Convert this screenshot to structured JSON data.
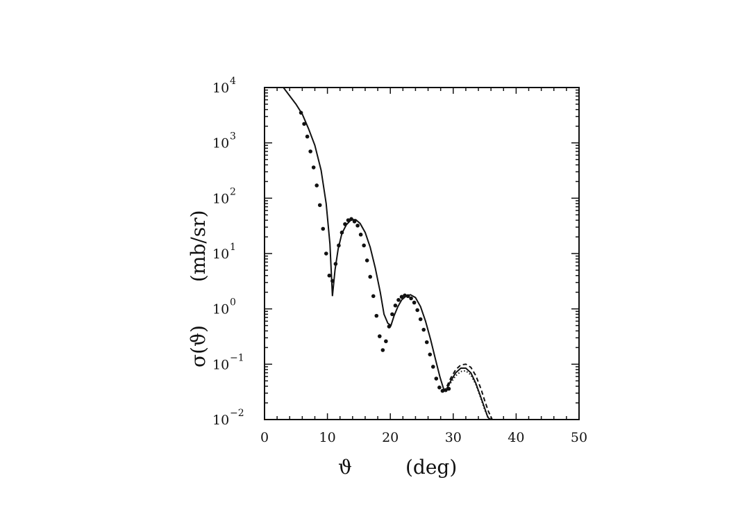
{
  "chart_data": {
    "type": "scatter",
    "title": "",
    "xlabel_symbol": "ϑ",
    "xlabel_unit": "(deg)",
    "ylabel_symbol": "σ(ϑ)",
    "ylabel_unit": "(mb/sr)",
    "x_scale": "linear",
    "y_scale": "log",
    "xlim": [
      0,
      50
    ],
    "ylim": [
      0.01,
      10000
    ],
    "x_ticks": [
      0,
      10,
      20,
      30,
      40,
      50
    ],
    "y_ticks": [
      {
        "value": 0.01,
        "base": "10",
        "exp": "−2"
      },
      {
        "value": 0.1,
        "base": "10",
        "exp": "−1"
      },
      {
        "value": 1,
        "base": "10",
        "exp": "0"
      },
      {
        "value": 10,
        "base": "10",
        "exp": "1"
      },
      {
        "value": 100,
        "base": "10",
        "exp": "2"
      },
      {
        "value": 1000,
        "base": "10",
        "exp": "3"
      },
      {
        "value": 10000,
        "base": "10",
        "exp": "4"
      }
    ],
    "grid": false,
    "legend": "none",
    "series": [
      {
        "style": "points",
        "x": [
          5.8,
          6.3,
          6.8,
          7.3,
          7.8,
          8.3,
          8.8,
          9.3,
          9.8,
          10.3,
          10.8,
          11.3,
          11.8,
          12.3,
          12.8,
          13.3,
          13.8,
          14.3,
          14.8,
          15.3,
          15.8,
          16.3,
          16.8,
          17.3,
          17.8,
          18.3,
          18.8,
          19.3,
          19.8,
          20.3,
          20.8,
          21.3,
          21.8,
          22.3,
          22.8,
          23.3,
          23.8,
          24.3,
          24.8,
          25.3,
          25.8,
          26.3,
          26.8,
          27.3,
          27.8,
          28.3,
          28.8,
          29.3
        ],
        "y": [
          3500,
          2200,
          1300,
          700,
          360,
          170,
          75,
          28,
          10,
          4.0,
          3.2,
          6.5,
          14,
          24,
          34,
          40,
          42,
          38,
          32,
          22,
          14,
          7.5,
          3.8,
          1.7,
          0.75,
          0.32,
          0.18,
          0.26,
          0.48,
          0.8,
          1.15,
          1.45,
          1.65,
          1.75,
          1.7,
          1.55,
          1.3,
          0.95,
          0.65,
          0.42,
          0.25,
          0.15,
          0.09,
          0.055,
          0.038,
          0.033,
          0.034,
          0.036
        ]
      },
      {
        "style": "solid",
        "x": [
          3,
          5,
          6,
          7,
          8,
          9,
          9.8,
          10.4,
          10.8,
          11.2,
          11.7,
          12.3,
          13,
          13.8,
          14.5,
          15.2,
          16,
          16.8,
          17.6,
          18.4,
          19,
          19.6,
          20.1,
          20.6,
          21.2,
          21.8,
          22.5,
          23.2,
          24,
          24.8,
          25.6,
          26.4,
          27.2,
          27.9,
          28.5,
          29,
          29.6,
          30.4,
          31.2,
          32,
          32.8,
          33.6,
          34.4,
          35,
          35.5,
          35.9
        ],
        "y": [
          10000,
          5000,
          3300,
          1800,
          900,
          320,
          80,
          15,
          1.7,
          5,
          12,
          23,
          33,
          41,
          41,
          35,
          24,
          13,
          5.5,
          2.0,
          0.8,
          0.55,
          0.5,
          0.75,
          1.1,
          1.45,
          1.7,
          1.8,
          1.6,
          1.1,
          0.6,
          0.28,
          0.12,
          0.058,
          0.035,
          0.036,
          0.05,
          0.07,
          0.085,
          0.085,
          0.07,
          0.045,
          0.025,
          0.016,
          0.011,
          0.01
        ]
      },
      {
        "style": "dashed",
        "x": [
          29,
          29.6,
          30.4,
          31.2,
          32,
          32.8,
          33.6,
          34.4,
          35,
          35.6,
          36.2
        ],
        "y": [
          0.04,
          0.056,
          0.08,
          0.097,
          0.1,
          0.088,
          0.062,
          0.036,
          0.022,
          0.014,
          0.01
        ]
      },
      {
        "style": "dotted",
        "x": [
          29,
          29.6,
          30.4,
          31.2,
          32,
          32.8,
          33.6,
          34.4,
          35,
          35.4,
          35.7
        ],
        "y": [
          0.037,
          0.046,
          0.062,
          0.074,
          0.076,
          0.064,
          0.043,
          0.024,
          0.015,
          0.012,
          0.01
        ]
      }
    ]
  }
}
